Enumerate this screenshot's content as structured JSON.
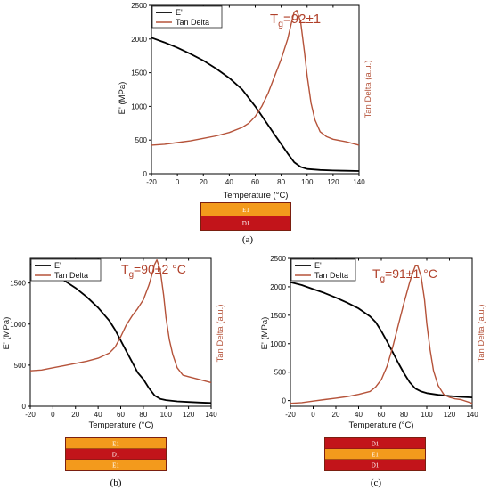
{
  "colors": {
    "e_prime": "#000000",
    "tan_delta": "#b5533a",
    "tg_text": "#b0402a",
    "layer_E1": "#f39a1c",
    "layer_D1": "#c2141a",
    "stack_border": "#7a1f10"
  },
  "chart_data": [
    {
      "id": "a",
      "type": "line",
      "caption": "(a)",
      "xlabel": "Temperature (°C)",
      "ylabel": "E' (MPa)",
      "y2label": "Tan Delta (a.u.)",
      "xlim": [
        -20,
        140
      ],
      "ylim": [
        0,
        2500
      ],
      "xticks": [
        "-20",
        "0",
        "20",
        "40",
        "60",
        "80",
        "100",
        "120",
        "140"
      ],
      "yticks": [
        "0",
        "500",
        "1000",
        "1500",
        "2000",
        "2500"
      ],
      "tg_label": {
        "main": "T",
        "sub": "g",
        "rest": "=92±1"
      },
      "legend": [
        "E'",
        "Tan Delta"
      ],
      "series": [
        {
          "name": "E'",
          "axis": "left",
          "x": [
            -20,
            -10,
            0,
            10,
            20,
            30,
            40,
            50,
            60,
            65,
            70,
            75,
            80,
            85,
            90,
            95,
            100,
            110,
            120,
            130,
            140
          ],
          "y": [
            2020,
            1950,
            1870,
            1780,
            1680,
            1560,
            1420,
            1250,
            1000,
            860,
            720,
            580,
            440,
            300,
            170,
            100,
            70,
            55,
            48,
            44,
            40
          ]
        },
        {
          "name": "Tan Delta",
          "axis": "right",
          "x": [
            -20,
            -10,
            0,
            10,
            20,
            30,
            40,
            50,
            55,
            60,
            65,
            70,
            75,
            80,
            85,
            88,
            90,
            92,
            95,
            98,
            100,
            103,
            106,
            110,
            115,
            120,
            130,
            140
          ],
          "y": [
            0.17,
            0.175,
            0.185,
            0.195,
            0.21,
            0.225,
            0.245,
            0.275,
            0.3,
            0.34,
            0.4,
            0.48,
            0.58,
            0.68,
            0.8,
            0.9,
            0.96,
            0.97,
            0.9,
            0.72,
            0.58,
            0.42,
            0.32,
            0.25,
            0.22,
            0.205,
            0.19,
            0.17
          ]
        }
      ],
      "layers": [
        "E1",
        "D1"
      ]
    },
    {
      "id": "b",
      "type": "line",
      "caption": "(b)",
      "xlabel": "Temperature (°C)",
      "ylabel": "E' (MPa)",
      "y2label": "Tan Delta (a.u.)",
      "xlim": [
        -20,
        140
      ],
      "ylim": [
        0,
        1800
      ],
      "xticks": [
        "-20",
        "0",
        "20",
        "40",
        "60",
        "80",
        "100",
        "120",
        "140"
      ],
      "yticks": [
        "0",
        "500",
        "1000",
        "1500"
      ],
      "tg_label": {
        "main": "T",
        "sub": "g",
        "rest": "=90±2 °C"
      },
      "legend": [
        "E'",
        "Tan Delta"
      ],
      "series": [
        {
          "name": "E'",
          "axis": "left",
          "x": [
            -20,
            -10,
            0,
            10,
            20,
            30,
            40,
            50,
            55,
            60,
            65,
            70,
            75,
            80,
            85,
            90,
            95,
            100,
            110,
            120,
            130,
            140
          ],
          "y": [
            1730,
            1680,
            1610,
            1530,
            1440,
            1330,
            1200,
            1040,
            930,
            800,
            670,
            540,
            410,
            330,
            220,
            130,
            90,
            75,
            60,
            52,
            46,
            40
          ]
        },
        {
          "name": "Tan Delta",
          "axis": "right",
          "x": [
            -20,
            -10,
            0,
            10,
            20,
            30,
            40,
            50,
            55,
            60,
            65,
            70,
            75,
            80,
            85,
            88,
            90,
            92,
            95,
            98,
            100,
            103,
            106,
            110,
            115,
            120,
            130,
            140
          ],
          "y": [
            0.24,
            0.245,
            0.26,
            0.275,
            0.29,
            0.305,
            0.325,
            0.36,
            0.4,
            0.47,
            0.55,
            0.61,
            0.66,
            0.72,
            0.82,
            0.9,
            0.96,
            0.99,
            0.92,
            0.75,
            0.6,
            0.45,
            0.35,
            0.26,
            0.21,
            0.2,
            0.18,
            0.16
          ]
        }
      ],
      "layers": [
        "E1",
        "D1",
        "E1"
      ]
    },
    {
      "id": "c",
      "type": "line",
      "caption": "(c)",
      "xlabel": "Temperature (°C)",
      "ylabel": "E' (MPa)",
      "y2label": "Tan Delta (a.u.)",
      "xlim": [
        -20,
        140
      ],
      "ylim": [
        -100,
        2500
      ],
      "xticks": [
        "-20",
        "0",
        "20",
        "40",
        "60",
        "80",
        "100",
        "120",
        "140"
      ],
      "yticks": [
        "0",
        "500",
        "1000",
        "1500",
        "2000",
        "2500"
      ],
      "tg_label": {
        "main": "T",
        "sub": "g",
        "rest": "=91±1 °C"
      },
      "legend": [
        "E'",
        "Tan Delta"
      ],
      "series": [
        {
          "name": "E'",
          "axis": "left",
          "x": [
            -20,
            -10,
            0,
            10,
            20,
            30,
            40,
            50,
            55,
            60,
            65,
            70,
            75,
            80,
            85,
            90,
            95,
            100,
            110,
            120,
            130,
            140
          ],
          "y": [
            2080,
            2030,
            1960,
            1890,
            1810,
            1720,
            1620,
            1480,
            1380,
            1220,
            1040,
            850,
            660,
            480,
            320,
            210,
            160,
            130,
            100,
            80,
            65,
            55
          ]
        },
        {
          "name": "Tan Delta",
          "axis": "right",
          "x": [
            -20,
            -10,
            0,
            10,
            20,
            30,
            40,
            50,
            55,
            60,
            65,
            70,
            75,
            80,
            85,
            88,
            90,
            92,
            95,
            98,
            100,
            103,
            106,
            110,
            115,
            120,
            125,
            130,
            140
          ],
          "y": [
            0.02,
            0.025,
            0.035,
            0.045,
            0.055,
            0.065,
            0.08,
            0.1,
            0.13,
            0.18,
            0.27,
            0.4,
            0.55,
            0.7,
            0.84,
            0.91,
            0.95,
            0.95,
            0.88,
            0.72,
            0.56,
            0.38,
            0.24,
            0.14,
            0.08,
            0.06,
            0.05,
            0.045,
            0.02
          ]
        }
      ],
      "layers": [
        "D1",
        "E1",
        "D1"
      ]
    }
  ]
}
